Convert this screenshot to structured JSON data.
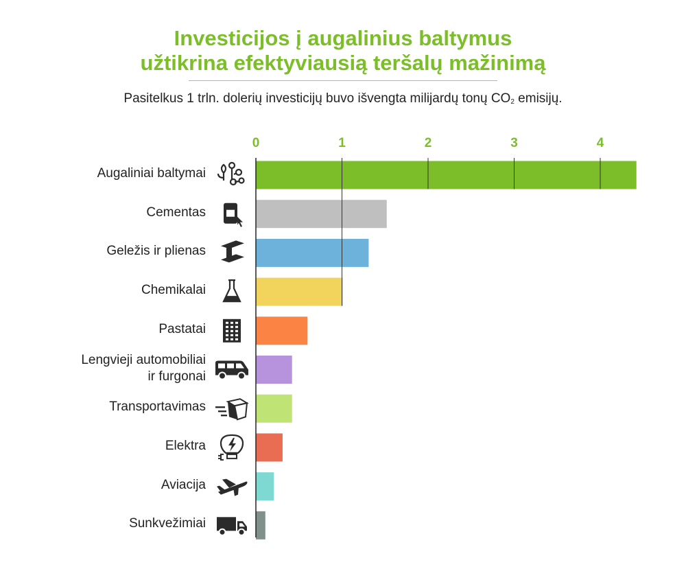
{
  "header": {
    "title_line1": "Investicijos į augalinius baltymus",
    "title_line2": "užtikrina efektyviausią teršalų mažinimą",
    "subtitle_prefix": "Pasitelkus 1 trln. dolerių investicijų buvo išvengta milijardų tonų CO",
    "subtitle_sub": "2",
    "subtitle_suffix": " emisijų."
  },
  "colors": {
    "accent": "#7cbd2a",
    "axis": "#222222",
    "grid": "#333333"
  },
  "chart_data": {
    "type": "bar",
    "orientation": "horizontal",
    "title": "Investicijos į augalinius baltymus užtikrina efektyviausią teršalų mažinimą",
    "subtitle": "Pasitelkus 1 trln. dolerių investicijų buvo išvengta milijardų tonų CO₂ emisijų.",
    "xlim": [
      0,
      4.42
    ],
    "xticks": [
      0,
      1,
      2,
      3,
      4
    ],
    "tick_labels": [
      "0",
      "1",
      "2",
      "3",
      "4"
    ],
    "grid": true,
    "categories": [
      "Augaliniai baltymai",
      "Cementas",
      "Geležis ir plienas",
      "Chemikalai",
      "Pastatai",
      "Lengvieji automobiliai ir furgonai",
      "Transportavimas",
      "Elektra",
      "Aviacija",
      "Sunkvežimiai"
    ],
    "category_lines": [
      [
        "Augaliniai baltymai"
      ],
      [
        "Cementas"
      ],
      [
        "Geležis ir plienas"
      ],
      [
        "Chemikalai"
      ],
      [
        "Pastatai"
      ],
      [
        "Lengvieji automobiliai",
        "ir furgonai"
      ],
      [
        "Transportavimas"
      ],
      [
        "Elektra"
      ],
      [
        "Aviacija"
      ],
      [
        "Sunkvežimiai"
      ]
    ],
    "values": [
      4.42,
      1.52,
      1.31,
      1.01,
      0.6,
      0.42,
      0.42,
      0.31,
      0.21,
      0.11
    ],
    "bar_colors": [
      "#7cbd2a",
      "#c0bfc0",
      "#6cb2da",
      "#f2d35b",
      "#fb8445",
      "#b893dd",
      "#bfe374",
      "#e96d52",
      "#7ed9d3",
      "#7f918a"
    ],
    "icons": [
      "sprout-icon",
      "cement-bag-icon",
      "steel-beam-icon",
      "flask-icon",
      "building-icon",
      "van-icon",
      "package-delivery-icon",
      "lightbulb-icon",
      "airplane-icon",
      "truck-icon"
    ]
  }
}
